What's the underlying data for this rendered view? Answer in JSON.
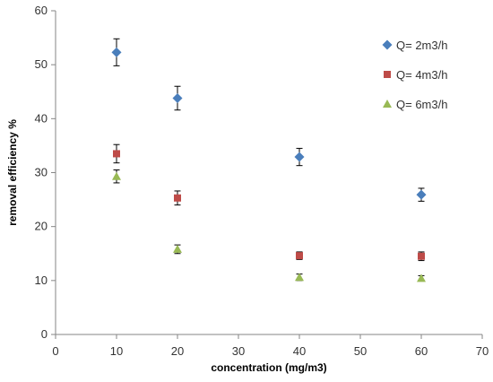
{
  "chart_data": {
    "type": "scatter",
    "title": "",
    "xlabel": "concentration (mg/m3)",
    "ylabel": "removal efficiency %",
    "xlim": [
      0,
      70
    ],
    "ylim": [
      0,
      60
    ],
    "xticks": [
      0,
      10,
      20,
      30,
      40,
      50,
      60,
      70
    ],
    "yticks": [
      0,
      10,
      20,
      30,
      40,
      50,
      60
    ],
    "grid": false,
    "legend_position": "right",
    "series": [
      {
        "name": "Q= 2m3/h",
        "color": "#4a7ebb",
        "marker": "diamond",
        "x": [
          10,
          20,
          40,
          60
        ],
        "y": [
          52.3,
          43.8,
          32.9,
          25.9
        ],
        "error": [
          2.5,
          2.2,
          1.6,
          1.2
        ]
      },
      {
        "name": "Q= 4m3/h",
        "color": "#be4b48",
        "marker": "square",
        "x": [
          10,
          20,
          40,
          60
        ],
        "y": [
          33.5,
          25.3,
          14.6,
          14.5
        ],
        "error": [
          1.7,
          1.3,
          0.7,
          0.8
        ]
      },
      {
        "name": "Q= 6m3/h",
        "color": "#98b954",
        "marker": "triangle",
        "x": [
          10,
          20,
          40,
          60
        ],
        "y": [
          29.3,
          15.8,
          10.6,
          10.4
        ],
        "error": [
          1.2,
          0.8,
          0.6,
          0.5
        ]
      }
    ]
  }
}
